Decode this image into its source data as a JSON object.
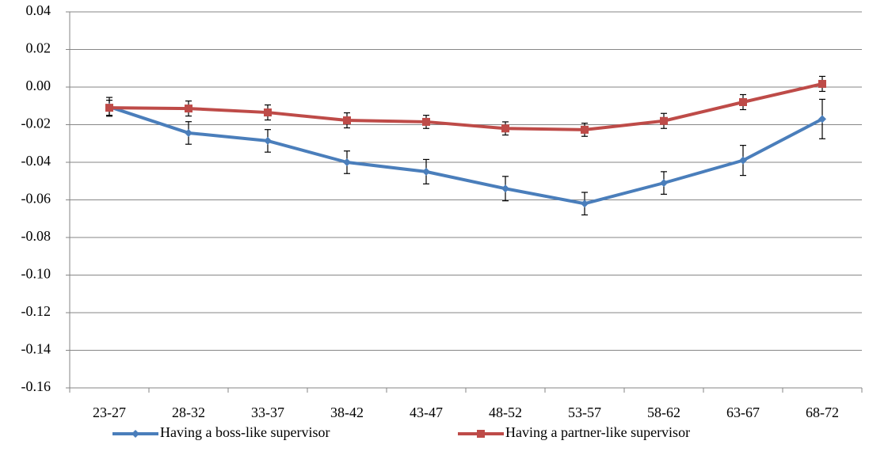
{
  "chart_data": {
    "type": "line",
    "categories": [
      "23-27",
      "28-32",
      "33-37",
      "38-42",
      "43-47",
      "48-52",
      "53-57",
      "58-62",
      "63-67",
      "68-72"
    ],
    "series": [
      {
        "name": "Having a boss-like supervisor",
        "color": "#4a7ebb",
        "marker": "diamond",
        "values": [
          -0.0105,
          -0.0244,
          -0.0286,
          -0.04,
          -0.045,
          -0.054,
          -0.062,
          -0.051,
          -0.039,
          -0.017
        ],
        "errors": [
          0.005,
          0.006,
          0.006,
          0.006,
          0.0065,
          0.0065,
          0.006,
          0.006,
          0.008,
          0.0105
        ]
      },
      {
        "name": "Having a partner-like supervisor",
        "color": "#be4b48",
        "marker": "square",
        "values": [
          -0.011,
          -0.0114,
          -0.0135,
          -0.0177,
          -0.0185,
          -0.022,
          -0.0227,
          -0.018,
          -0.008,
          0.0017
        ],
        "errors": [
          0.004,
          0.004,
          0.004,
          0.004,
          0.0035,
          0.0035,
          0.0035,
          0.004,
          0.004,
          0.004
        ]
      }
    ],
    "ylim": [
      -0.16,
      0.04
    ],
    "yticks": [
      {
        "value": 0.04,
        "label": "0.04"
      },
      {
        "value": 0.02,
        "label": "0.02"
      },
      {
        "value": 0,
        "label": "0.00"
      },
      {
        "value": -0.02,
        "label": "-0.02"
      },
      {
        "value": -0.04,
        "label": "-0.04"
      },
      {
        "value": -0.06,
        "label": "-0.06"
      },
      {
        "value": -0.08,
        "label": "-0.08"
      },
      {
        "value": -0.1,
        "label": "-0.10"
      },
      {
        "value": -0.12,
        "label": "-0.12"
      },
      {
        "value": -0.14,
        "label": "-0.14"
      },
      {
        "value": -0.16,
        "label": "-0.16"
      }
    ],
    "grid": true,
    "legend": "bottom"
  }
}
